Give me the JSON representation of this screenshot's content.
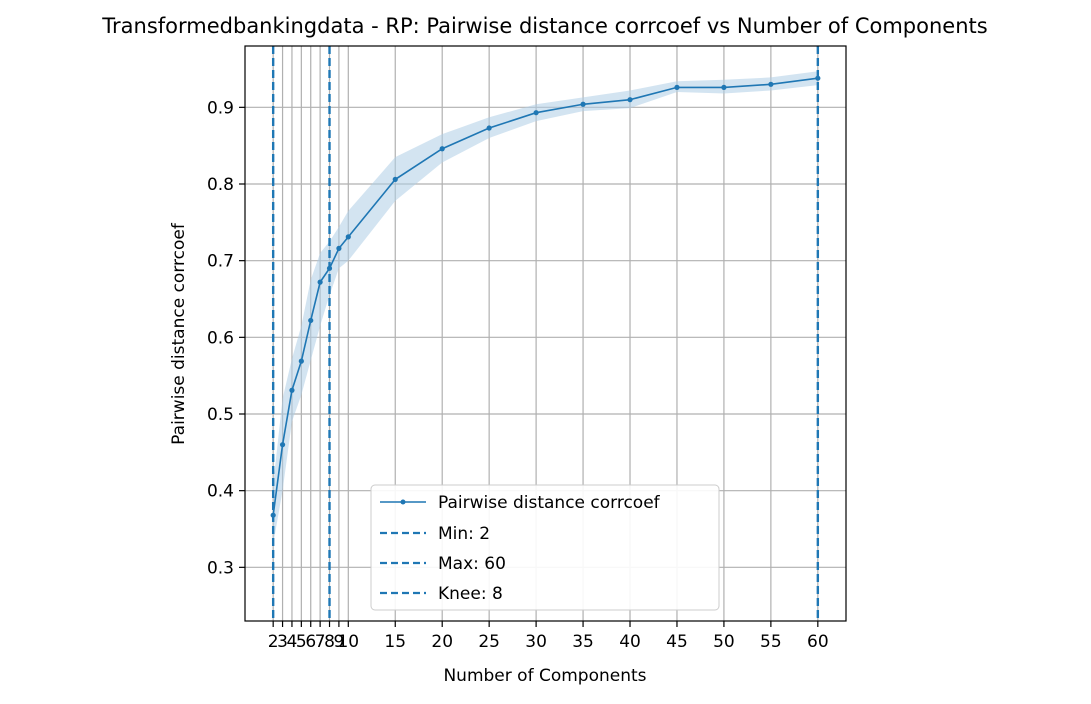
{
  "chart_data": {
    "type": "line",
    "title": "Transformedbankingdata - RP: Pairwise distance corrcoef vs Number of Components",
    "xlabel": "Number of Components",
    "ylabel": "Pairwise distance corrcoef",
    "xlim": [
      -1,
      63
    ],
    "ylim": [
      0.23,
      0.98
    ],
    "grid": true,
    "legend_position": "lower center",
    "x_ticks": [
      2,
      3,
      4,
      5,
      6,
      7,
      8,
      9,
      10,
      15,
      20,
      25,
      30,
      35,
      40,
      45,
      50,
      55,
      60
    ],
    "x_tick_labels": [
      "2",
      "3",
      "4",
      "5",
      "6",
      "7",
      "8",
      "9",
      "10",
      "15",
      "20",
      "25",
      "30",
      "35",
      "40",
      "45",
      "50",
      "55",
      "60"
    ],
    "y_ticks": [
      0.3,
      0.4,
      0.5,
      0.6,
      0.7,
      0.8,
      0.9
    ],
    "y_tick_labels": [
      "0.3",
      "0.4",
      "0.5",
      "0.6",
      "0.7",
      "0.8",
      "0.9"
    ],
    "series": [
      {
        "name": "Pairwise distance corrcoef",
        "color": "#1f77b4",
        "band_color": "#aecde6",
        "x": [
          2,
          3,
          4,
          5,
          6,
          7,
          8,
          9,
          10,
          15,
          20,
          25,
          30,
          35,
          40,
          45,
          50,
          55,
          60
        ],
        "y": [
          0.368,
          0.46,
          0.531,
          0.569,
          0.622,
          0.672,
          0.69,
          0.716,
          0.731,
          0.806,
          0.846,
          0.873,
          0.893,
          0.904,
          0.91,
          0.926,
          0.926,
          0.93,
          0.938
        ],
        "y_lower": [
          0.33,
          0.4,
          0.49,
          0.525,
          0.57,
          0.615,
          0.655,
          0.69,
          0.7,
          0.778,
          0.828,
          0.86,
          0.882,
          0.895,
          0.899,
          0.92,
          0.918,
          0.922,
          0.929
        ],
        "y_upper": [
          0.408,
          0.52,
          0.572,
          0.615,
          0.675,
          0.71,
          0.725,
          0.744,
          0.765,
          0.835,
          0.865,
          0.887,
          0.904,
          0.913,
          0.922,
          0.934,
          0.936,
          0.939,
          0.947
        ]
      }
    ],
    "vlines": [
      {
        "label": "Min: 2",
        "x": 2,
        "color": "#1f77b4",
        "style": "dashed"
      },
      {
        "label": "Max: 60",
        "x": 60,
        "color": "#1f77b4",
        "style": "dashed"
      },
      {
        "label": "Knee: 8",
        "x": 8,
        "color": "#1f77b4",
        "style": "dashed"
      }
    ]
  }
}
